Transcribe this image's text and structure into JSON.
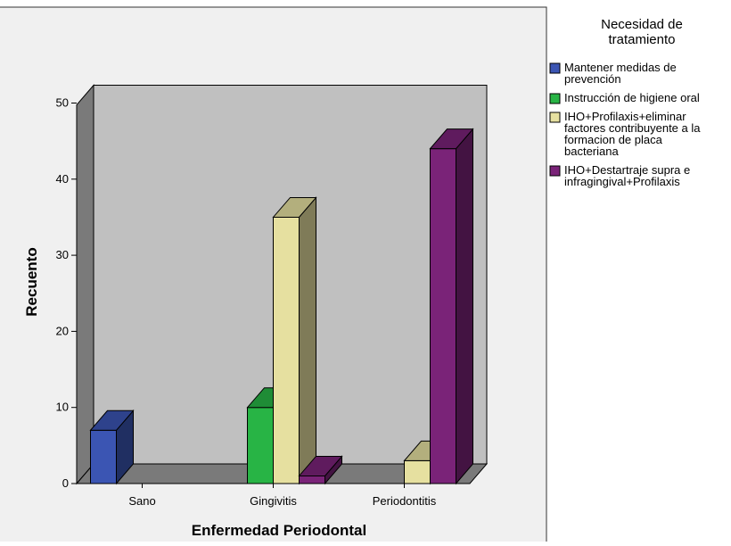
{
  "chart_data": {
    "type": "bar",
    "title": "",
    "xlabel": "Enfermedad Periodontal",
    "ylabel": "Recuento",
    "categories": [
      "Sano",
      "Gingivitis",
      "Periodontitis"
    ],
    "yticks": [
      0,
      10,
      20,
      30,
      40,
      50
    ],
    "ylim": [
      0,
      50
    ],
    "grid": false,
    "legend_position": "right",
    "legend_title_lines": [
      "Necesidad de",
      "tratamiento"
    ],
    "series": [
      {
        "name": "Mantener medidas de prevención",
        "name_lines": [
          "Mantener medidas de",
          "prevención"
        ],
        "color": "#3b55b3",
        "values": [
          7,
          0,
          0
        ]
      },
      {
        "name": "Instrucción de higiene oral",
        "name_lines": [
          "Instrucción de higiene oral"
        ],
        "color": "#28b445",
        "values": [
          0,
          10,
          0
        ]
      },
      {
        "name": "IHO+Profilaxis+eliminar factores contribuyente a la formacion de placa bacteriana",
        "name_lines": [
          "IHO+Profilaxis+eliminar",
          "factores contribuyente a la",
          "formacion de placa",
          "bacteriana"
        ],
        "color": "#e6e0a0",
        "values": [
          0,
          35,
          3
        ]
      },
      {
        "name": "IHO+Destartraje supra e infragingival+Profilaxis",
        "name_lines": [
          "IHO+Destartraje supra e",
          "infragingival+Profilaxis"
        ],
        "color": "#7a2378",
        "values": [
          0,
          1,
          44
        ]
      }
    ]
  }
}
